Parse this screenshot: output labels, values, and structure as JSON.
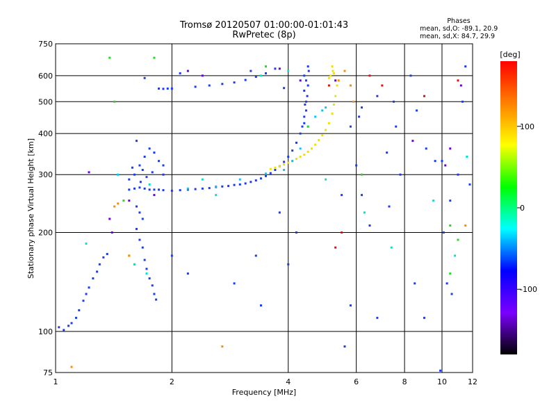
{
  "chart_data": {
    "type": "scatter",
    "title": "Tromsø 20120507 01:00:00-01:01:43",
    "subtitle": "RwPretec (8p)",
    "xlabel": "Frequency [MHz]",
    "ylabel": "Stationary phase Virtual Height [km]",
    "x_scale": "log",
    "y_scale": "log",
    "xlim": [
      1,
      12
    ],
    "ylim": [
      75,
      750
    ],
    "x_ticks": [
      1,
      2,
      4,
      6,
      8,
      10,
      12
    ],
    "y_ticks": [
      75,
      100,
      200,
      300,
      400,
      500,
      600,
      750
    ],
    "grid": true,
    "legend": {
      "heading": "Phases",
      "lines": [
        "mean, sd,O: -89.1, 20.9",
        "mean, sd,X:  84.7, 29.9"
      ],
      "position": "top-right"
    },
    "colorbar": {
      "label": "[deg]",
      "range": [
        -180,
        180
      ],
      "ticks": [
        100,
        0,
        -100
      ],
      "colormap": [
        "#000000",
        "#7b00ff",
        "#0000ff",
        "#00ffff",
        "#00ff00",
        "#ffff00",
        "#ff8000",
        "#ff0000"
      ]
    },
    "series": [
      {
        "color": "#1a3cf0",
        "points": [
          [
            1.02,
            103
          ],
          [
            1.05,
            101
          ],
          [
            1.08,
            104
          ],
          [
            1.1,
            106
          ],
          [
            1.13,
            110
          ],
          [
            1.15,
            116
          ],
          [
            1.18,
            124
          ],
          [
            1.2,
            130
          ],
          [
            1.22,
            136
          ],
          [
            1.25,
            145
          ],
          [
            1.28,
            152
          ],
          [
            1.3,
            160
          ],
          [
            1.33,
            168
          ],
          [
            1.36,
            172
          ],
          [
            1.55,
            270
          ],
          [
            1.6,
            272
          ],
          [
            1.65,
            274
          ],
          [
            1.7,
            272
          ],
          [
            1.75,
            270
          ],
          [
            1.8,
            270
          ],
          [
            1.85,
            270
          ],
          [
            1.9,
            269
          ],
          [
            2.0,
            268
          ],
          [
            2.1,
            269
          ],
          [
            2.2,
            270
          ],
          [
            2.3,
            271
          ],
          [
            2.4,
            272
          ],
          [
            2.5,
            273
          ],
          [
            2.6,
            275
          ],
          [
            2.7,
            276
          ],
          [
            2.8,
            277
          ],
          [
            2.9,
            279
          ],
          [
            3.0,
            280
          ],
          [
            3.1,
            282
          ],
          [
            3.2,
            285
          ],
          [
            3.3,
            288
          ],
          [
            3.4,
            292
          ],
          [
            3.5,
            297
          ],
          [
            3.6,
            303
          ],
          [
            3.7,
            310
          ],
          [
            3.8,
            318
          ],
          [
            3.9,
            328
          ],
          [
            4.0,
            340
          ],
          [
            4.1,
            355
          ],
          [
            4.2,
            375
          ],
          [
            4.3,
            400
          ],
          [
            4.35,
            420
          ],
          [
            4.4,
            450
          ],
          [
            4.45,
            500
          ],
          [
            4.5,
            560
          ],
          [
            4.52,
            620
          ],
          [
            1.55,
            290
          ],
          [
            1.6,
            300
          ],
          [
            1.65,
            320
          ],
          [
            1.7,
            340
          ],
          [
            1.75,
            360
          ],
          [
            1.8,
            350
          ],
          [
            1.85,
            330
          ],
          [
            1.9,
            320
          ],
          [
            1.62,
            380
          ],
          [
            1.68,
            310
          ],
          [
            1.72,
            295
          ],
          [
            1.78,
            305
          ],
          [
            1.58,
            315
          ],
          [
            1.66,
            285
          ],
          [
            1.62,
            240
          ],
          [
            1.65,
            230
          ],
          [
            1.68,
            220
          ],
          [
            1.62,
            205
          ],
          [
            1.65,
            190
          ],
          [
            1.68,
            180
          ],
          [
            1.7,
            165
          ],
          [
            1.72,
            155
          ],
          [
            1.75,
            145
          ],
          [
            1.78,
            138
          ],
          [
            1.8,
            130
          ],
          [
            1.82,
            125
          ],
          [
            1.85,
            548
          ],
          [
            1.9,
            547
          ],
          [
            1.95,
            548
          ],
          [
            2.0,
            548
          ],
          [
            2.3,
            555
          ],
          [
            2.5,
            560
          ],
          [
            2.7,
            566
          ],
          [
            2.9,
            572
          ],
          [
            3.1,
            582
          ],
          [
            3.3,
            595
          ],
          [
            3.5,
            610
          ],
          [
            3.7,
            630
          ],
          [
            4.4,
            600
          ],
          [
            4.45,
            580
          ],
          [
            4.4,
            540
          ],
          [
            4.45,
            470
          ],
          [
            4.4,
            430
          ],
          [
            4.5,
            640
          ],
          [
            4.48,
            520
          ],
          [
            4.42,
            490
          ]
        ]
      },
      {
        "color": "#f2e100",
        "points": [
          [
            3.6,
            312
          ],
          [
            3.7,
            315
          ],
          [
            3.8,
            318
          ],
          [
            3.9,
            322
          ],
          [
            4.0,
            326
          ],
          [
            4.1,
            330
          ],
          [
            4.2,
            335
          ],
          [
            4.3,
            340
          ],
          [
            4.4,
            345
          ],
          [
            4.5,
            352
          ],
          [
            4.6,
            360
          ],
          [
            4.7,
            370
          ],
          [
            4.8,
            382
          ],
          [
            4.9,
            395
          ],
          [
            5.0,
            410
          ],
          [
            5.1,
            430
          ],
          [
            5.2,
            460
          ],
          [
            5.25,
            490
          ],
          [
            5.3,
            520
          ],
          [
            5.2,
            640
          ],
          [
            5.25,
            610
          ],
          [
            5.3,
            580
          ],
          [
            5.35,
            560
          ],
          [
            5.15,
            600
          ],
          [
            5.22,
            620
          ],
          [
            5.1,
            590
          ]
        ]
      },
      {
        "color": "#00c8ff",
        "points": [
          [
            4.1,
            330
          ],
          [
            4.3,
            360
          ],
          [
            4.5,
            420
          ],
          [
            4.7,
            450
          ],
          [
            4.9,
            470
          ],
          [
            5.0,
            480
          ],
          [
            3.9,
            310
          ],
          [
            3.5,
            302
          ],
          [
            2.2,
            272
          ],
          [
            2.6,
            276
          ],
          [
            3.0,
            290
          ],
          [
            1.45,
            300
          ]
        ]
      },
      {
        "color": "#6a00e0",
        "points": [
          [
            1.22,
            305
          ],
          [
            1.38,
            220
          ],
          [
            1.4,
            200
          ],
          [
            1.55,
            250
          ],
          [
            1.8,
            260
          ],
          [
            2.2,
            620
          ],
          [
            2.4,
            600
          ],
          [
            3.8,
            630
          ],
          [
            4.3,
            580
          ],
          [
            5.3,
            580
          ],
          [
            8.4,
            380
          ],
          [
            10.5,
            360
          ],
          [
            11.2,
            560
          ],
          [
            10.2,
            320
          ]
        ]
      },
      {
        "color": "#2fd32f",
        "points": [
          [
            1.38,
            680
          ],
          [
            1.42,
            500
          ],
          [
            1.5,
            250
          ],
          [
            1.8,
            680
          ],
          [
            4.5,
            420
          ],
          [
            5.8,
            560
          ],
          [
            6.2,
            300
          ],
          [
            10.5,
            210
          ],
          [
            11.0,
            190
          ],
          [
            10.5,
            150
          ],
          [
            3.5,
            640
          ],
          [
            1.55,
            170
          ]
        ]
      },
      {
        "color": "#ff8c00",
        "points": [
          [
            1.42,
            240
          ],
          [
            1.45,
            245
          ],
          [
            1.55,
            170
          ],
          [
            1.6,
            160
          ],
          [
            5.4,
            580
          ],
          [
            5.6,
            620
          ],
          [
            5.8,
            560
          ],
          [
            5.9,
            500
          ],
          [
            11.5,
            210
          ],
          [
            2.7,
            90
          ],
          [
            1.1,
            78
          ]
        ]
      },
      {
        "color": "#e01010",
        "points": [
          [
            5.3,
            180
          ],
          [
            5.5,
            200
          ],
          [
            6.5,
            600
          ],
          [
            7.0,
            560
          ],
          [
            9.0,
            520
          ],
          [
            11.0,
            580
          ],
          [
            5.1,
            560
          ]
        ]
      },
      {
        "color": "#1a3cf0",
        "points": [
          [
            6.1,
            450
          ],
          [
            6.0,
            320
          ],
          [
            6.2,
            260
          ],
          [
            7.5,
            500
          ],
          [
            7.6,
            420
          ],
          [
            8.3,
            600
          ],
          [
            8.6,
            470
          ],
          [
            9.1,
            360
          ],
          [
            9.6,
            330
          ],
          [
            10.0,
            330
          ],
          [
            10.1,
            200
          ],
          [
            10.3,
            140
          ],
          [
            10.5,
            250
          ],
          [
            10.6,
            130
          ],
          [
            11.0,
            300
          ],
          [
            11.3,
            500
          ],
          [
            11.5,
            640
          ],
          [
            11.8,
            280
          ],
          [
            8.5,
            140
          ],
          [
            9.0,
            110
          ],
          [
            9.9,
            76
          ],
          [
            5.6,
            90
          ],
          [
            5.8,
            120
          ],
          [
            6.8,
            110
          ],
          [
            6.5,
            210
          ],
          [
            7.3,
            240
          ],
          [
            7.8,
            300
          ],
          [
            5.5,
            260
          ],
          [
            5.8,
            420
          ],
          [
            6.2,
            480
          ],
          [
            6.8,
            520
          ],
          [
            7.2,
            350
          ],
          [
            2.9,
            140
          ],
          [
            3.3,
            170
          ],
          [
            3.8,
            230
          ],
          [
            3.9,
            550
          ],
          [
            4.0,
            160
          ],
          [
            4.2,
            200
          ],
          [
            2.2,
            150
          ],
          [
            2.0,
            170
          ],
          [
            1.9,
            300
          ],
          [
            3.2,
            620
          ],
          [
            3.4,
            120
          ],
          [
            1.7,
            590
          ],
          [
            2.1,
            610
          ]
        ]
      },
      {
        "color": "#00e5c8",
        "points": [
          [
            1.6,
            160
          ],
          [
            1.75,
            280
          ],
          [
            2.4,
            290
          ],
          [
            2.6,
            260
          ],
          [
            3.4,
            600
          ],
          [
            4.0,
            620
          ],
          [
            5.0,
            290
          ],
          [
            6.3,
            230
          ],
          [
            7.4,
            180
          ],
          [
            9.5,
            250
          ],
          [
            10.8,
            170
          ],
          [
            11.6,
            340
          ],
          [
            1.72,
            150
          ],
          [
            1.2,
            185
          ]
        ]
      }
    ]
  }
}
